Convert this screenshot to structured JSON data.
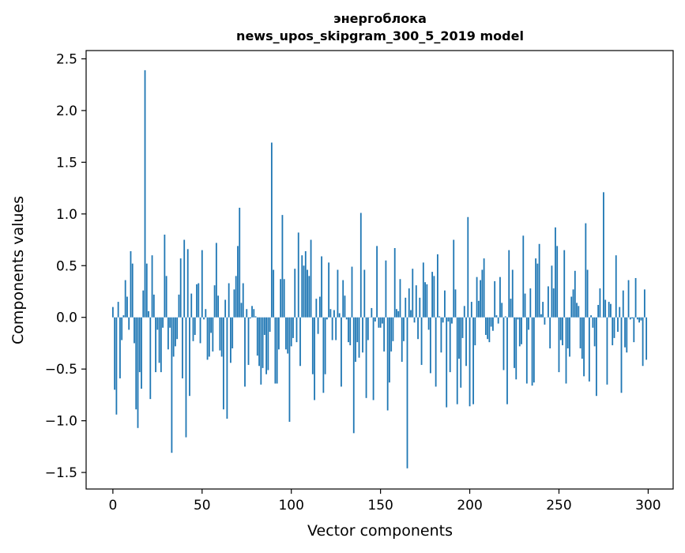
{
  "chart_data": {
    "type": "bar",
    "title": [
      "энергоблока",
      "news_upos_skipgram_300_5_2019 model"
    ],
    "xlabel": "Vector components",
    "ylabel": "Components values",
    "xlim": [
      -15,
      314
    ],
    "ylim": [
      -1.66,
      2.58
    ],
    "xticks": [
      0,
      50,
      100,
      150,
      200,
      250,
      300
    ],
    "xtick_labels": [
      "0",
      "50",
      "100",
      "150",
      "200",
      "250",
      "300"
    ],
    "yticks": [
      -1.5,
      -1.0,
      -0.5,
      0.0,
      0.5,
      1.0,
      1.5,
      2.0,
      2.5
    ],
    "ytick_labels": [
      "−1.5",
      "−1.0",
      "−0.5",
      "0.0",
      "0.5",
      "1.0",
      "1.5",
      "2.0",
      "2.5"
    ],
    "grid": false,
    "bar_color": "#1f77b4",
    "values": [
      0.1,
      -0.7,
      -0.94,
      0.15,
      -0.59,
      -0.22,
      0.02,
      0.36,
      0.2,
      -0.12,
      0.64,
      0.52,
      -0.25,
      -0.89,
      -1.07,
      -0.53,
      -0.69,
      0.26,
      2.39,
      0.52,
      0.06,
      -0.79,
      0.6,
      0.22,
      -0.53,
      -0.12,
      -0.44,
      -0.53,
      -0.1,
      0.8,
      0.4,
      -0.31,
      -0.1,
      -1.31,
      -0.38,
      -0.28,
      -0.21,
      0.22,
      0.57,
      -0.59,
      0.75,
      -1.16,
      0.66,
      -0.76,
      0.23,
      -0.23,
      -0.17,
      0.32,
      0.33,
      -0.25,
      0.65,
      -0.02,
      0.08,
      -0.41,
      -0.38,
      -0.15,
      -0.33,
      0.31,
      0.72,
      0.21,
      -0.32,
      -0.38,
      -0.89,
      0.17,
      -0.98,
      0.33,
      -0.44,
      -0.3,
      0.27,
      0.4,
      0.69,
      1.06,
      0.14,
      0.33,
      -0.67,
      0.08,
      -0.46,
      -0.01,
      0.11,
      0.08,
      0.01,
      -0.37,
      -0.47,
      -0.65,
      -0.49,
      -0.17,
      -0.55,
      -0.51,
      -0.14,
      1.69,
      0.46,
      -0.64,
      -0.64,
      -0.31,
      0.37,
      0.99,
      0.37,
      -0.31,
      -0.35,
      -1.01,
      -0.28,
      -0.2,
      0.47,
      -0.24,
      0.82,
      -0.47,
      0.6,
      0.5,
      0.64,
      0.46,
      0.4,
      0.75,
      -0.55,
      -0.8,
      0.18,
      -0.16,
      0.2,
      0.59,
      -0.73,
      -0.55,
      -0.02,
      0.53,
      0.08,
      -0.22,
      0.07,
      -0.22,
      0.46,
      0.04,
      -0.67,
      0.36,
      0.21,
      -0.02,
      -0.24,
      -0.27,
      0.49,
      -1.12,
      -0.43,
      -0.24,
      -0.39,
      1.01,
      -0.34,
      0.46,
      -0.78,
      -0.22,
      0.0,
      0.09,
      -0.8,
      -0.04,
      0.69,
      -0.1,
      -0.1,
      -0.06,
      -0.33,
      0.55,
      -0.9,
      -0.63,
      -0.33,
      -0.23,
      0.67,
      0.08,
      0.06,
      0.37,
      -0.43,
      -0.23,
      0.19,
      -1.46,
      0.28,
      0.07,
      0.47,
      -0.05,
      0.31,
      -0.21,
      0.19,
      -0.46,
      0.53,
      0.34,
      0.32,
      -0.12,
      -0.54,
      0.44,
      0.4,
      -0.67,
      0.61,
      0.01,
      -0.34,
      -0.05,
      0.26,
      -0.87,
      -0.04,
      -0.53,
      -0.06,
      0.75,
      0.27,
      -0.84,
      -0.4,
      -0.68,
      -0.2,
      0.11,
      -0.47,
      0.97,
      -0.86,
      0.15,
      -0.84,
      -0.27,
      0.39,
      0.16,
      0.36,
      0.46,
      0.57,
      -0.17,
      -0.21,
      -0.24,
      -0.09,
      -0.13,
      0.35,
      0.02,
      -0.06,
      0.39,
      0.14,
      -0.51,
      0.01,
      -0.84,
      0.65,
      0.18,
      0.46,
      -0.49,
      -0.6,
      -0.02,
      -0.28,
      -0.26,
      0.79,
      0.23,
      -0.64,
      -0.12,
      0.28,
      -0.66,
      -0.63,
      0.57,
      0.52,
      0.71,
      0.03,
      0.15,
      -0.07,
      0.0,
      0.3,
      -0.3,
      0.5,
      0.28,
      0.87,
      0.69,
      -0.53,
      -0.22,
      -0.27,
      0.65,
      -0.64,
      -0.3,
      -0.38,
      0.2,
      0.27,
      0.45,
      0.14,
      0.11,
      -0.3,
      -0.4,
      -0.57,
      0.91,
      0.46,
      -0.62,
      0.02,
      -0.1,
      -0.28,
      -0.76,
      0.12,
      0.28,
      0.0,
      1.21,
      0.17,
      -0.65,
      0.15,
      0.13,
      -0.27,
      -0.2,
      0.6,
      -0.14,
      0.1,
      -0.73,
      0.26,
      -0.29,
      -0.34,
      0.36,
      -0.02,
      -0.01,
      -0.24,
      0.38,
      -0.02,
      -0.05,
      -0.03,
      -0.47,
      0.27,
      -0.41
    ]
  }
}
